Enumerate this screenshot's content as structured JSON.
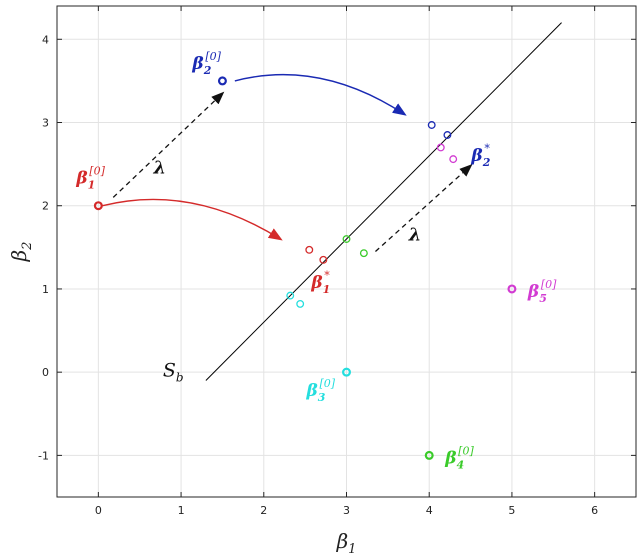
{
  "chart_data": {
    "type": "scatter",
    "title": "",
    "xlabel": "β",
    "xlabel_sub": "1",
    "ylabel": "β",
    "ylabel_sub": "2",
    "xlim": [
      -0.5,
      6.5
    ],
    "ylim": [
      -1.5,
      4.4
    ],
    "grid": true,
    "xticks": [
      0,
      1,
      2,
      3,
      4,
      5,
      6
    ],
    "yticks": [
      -1,
      0,
      1,
      2,
      3,
      4
    ],
    "xtick_labels": [
      "0",
      "1",
      "2",
      "3",
      "4",
      "5",
      "6"
    ],
    "ytick_labels": [
      "-1",
      "0",
      "1",
      "2",
      "3",
      "4"
    ],
    "line": {
      "label": "S",
      "label_sub": "b",
      "x1": 1.3,
      "y1": -0.1,
      "x2": 5.6,
      "y2": 4.2,
      "color": "#000000"
    },
    "series": [
      {
        "label": "β1",
        "color": "#d42a2a",
        "init": {
          "x": 0,
          "y": 2,
          "label": "β",
          "sub": "1",
          "sup": "[0]"
        },
        "trail": [
          {
            "x": 2.55,
            "y": 1.47
          },
          {
            "x": 2.72,
            "y": 1.35
          }
        ],
        "star_label": {
          "text": "β",
          "sub": "1",
          "sup": "*"
        }
      },
      {
        "label": "β2",
        "color": "#1a2ab3",
        "init": {
          "x": 1.5,
          "y": 3.5,
          "label": "β",
          "sub": "2",
          "sup": "[0]"
        },
        "trail": [
          {
            "x": 4.03,
            "y": 2.97
          },
          {
            "x": 4.22,
            "y": 2.85
          }
        ],
        "star_label": {
          "text": "β",
          "sub": "2",
          "sup": "*"
        }
      },
      {
        "label": "β3",
        "color": "#24dede",
        "init": {
          "x": 3,
          "y": 0,
          "label": "β",
          "sub": "3",
          "sup": "[0]"
        },
        "trail": [
          {
            "x": 2.32,
            "y": 0.92
          },
          {
            "x": 2.44,
            "y": 0.82
          }
        ]
      },
      {
        "label": "β4",
        "color": "#3acb2a",
        "init": {
          "x": 4,
          "y": -1,
          "label": "β",
          "sub": "4",
          "sup": "[0]"
        },
        "trail": [
          {
            "x": 3.0,
            "y": 1.6
          },
          {
            "x": 3.21,
            "y": 1.43
          }
        ]
      },
      {
        "label": "β5",
        "color": "#d23bd2",
        "init": {
          "x": 5,
          "y": 1,
          "label": "β",
          "sub": "5",
          "sup": "[0]"
        },
        "trail": [
          {
            "x": 4.14,
            "y": 2.7
          },
          {
            "x": 4.29,
            "y": 2.56
          }
        ]
      }
    ],
    "annotations": [
      {
        "text": "λ",
        "type": "dashed-arrow",
        "from": [
          0.18,
          2.1
        ],
        "to": [
          1.5,
          3.35
        ]
      },
      {
        "text": "λ",
        "type": "dashed-arrow",
        "from": [
          3.35,
          1.45
        ],
        "to": [
          4.5,
          2.48
        ]
      }
    ],
    "curved_arrows": [
      {
        "color": "#d42a2a",
        "from": [
          0.05,
          2.0
        ],
        "to": [
          2.2,
          1.6
        ]
      },
      {
        "color": "#1a2ab3",
        "from": [
          1.65,
          3.5
        ],
        "to": [
          3.7,
          3.1
        ]
      }
    ]
  }
}
